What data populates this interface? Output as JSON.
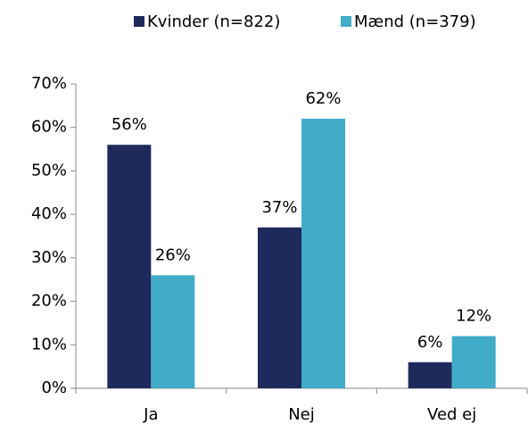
{
  "chart_data": {
    "type": "bar",
    "categories": [
      "Ja",
      "Nej",
      "Ved ej"
    ],
    "series": [
      {
        "name": "Kvinder (n=822)",
        "color": "#1f2a5c",
        "values": [
          56,
          37,
          6
        ],
        "value_labels": [
          "56%",
          "37%",
          "6%"
        ]
      },
      {
        "name": "Mænd (n=379)",
        "color": "#41acc8",
        "values": [
          26,
          62,
          12
        ],
        "value_labels": [
          "26%",
          "62%",
          "12%"
        ]
      }
    ],
    "ylim": [
      0,
      70
    ],
    "yticks": [
      {
        "value": 0,
        "label": "0%"
      },
      {
        "value": 10,
        "label": "10%"
      },
      {
        "value": 20,
        "label": "20%"
      },
      {
        "value": 30,
        "label": "30%"
      },
      {
        "value": 40,
        "label": "40%"
      },
      {
        "value": 50,
        "label": "50%"
      },
      {
        "value": 60,
        "label": "60%"
      },
      {
        "value": 70,
        "label": "70%"
      }
    ],
    "legend": "top"
  }
}
